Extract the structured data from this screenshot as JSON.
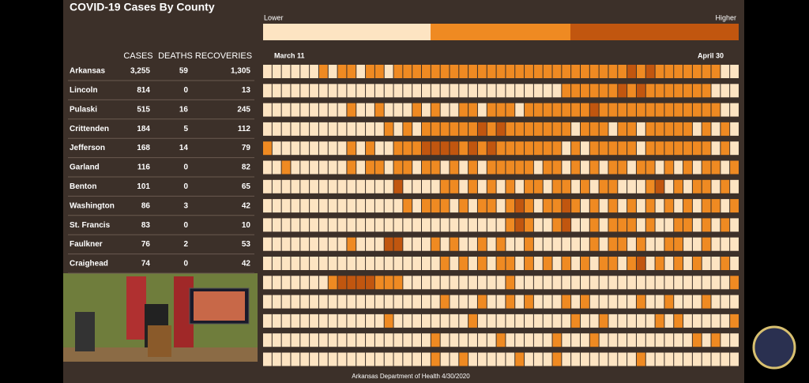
{
  "chart_data": {
    "type": "heatmap",
    "title": "COVID-19 Cases By County",
    "legend": {
      "low": "Lower",
      "high": "Higher"
    },
    "colors": [
      "#fde4c2",
      "#ef8a22",
      "#c1560f"
    ],
    "x_start": "March 11",
    "x_end": "April 30",
    "source": "Arkansas Department of Health 4/30/2020",
    "table": {
      "headers": [
        "CASES",
        "DEATHS",
        "RECOVERIES"
      ],
      "rows": [
        [
          "Arkansas",
          "3,255",
          "59",
          "1,305"
        ],
        [
          "Lincoln",
          "814",
          "0",
          "13"
        ],
        [
          "Pulaski",
          "515",
          "16",
          "245"
        ],
        [
          "Crittenden",
          "184",
          "5",
          "112"
        ],
        [
          "Jefferson",
          "168",
          "14",
          "79"
        ],
        [
          "Garland",
          "116",
          "0",
          "82"
        ],
        [
          "Benton",
          "101",
          "0",
          "65"
        ],
        [
          "Washington",
          "86",
          "3",
          "42"
        ],
        [
          "St. Francis",
          "83",
          "0",
          "10"
        ],
        [
          "Faulkner",
          "76",
          "2",
          "53"
        ],
        [
          "Craighead",
          "74",
          "0",
          "42"
        ]
      ]
    },
    "levels": [
      [
        1,
        1,
        1,
        1,
        1,
        1,
        2,
        1,
        2,
        2,
        1,
        2,
        2,
        1,
        2,
        2,
        2,
        2,
        2,
        2,
        2,
        2,
        2,
        2,
        2,
        2,
        2,
        2,
        2,
        2,
        2,
        2,
        2,
        2,
        2,
        2,
        2,
        2,
        2,
        3,
        2,
        3,
        2,
        2,
        2,
        2,
        2,
        2,
        2,
        1,
        1
      ],
      [
        1,
        1,
        1,
        1,
        1,
        1,
        1,
        1,
        1,
        1,
        1,
        1,
        1,
        1,
        1,
        1,
        1,
        1,
        1,
        1,
        1,
        1,
        1,
        1,
        1,
        1,
        1,
        1,
        1,
        1,
        1,
        1,
        2,
        2,
        2,
        2,
        2,
        2,
        3,
        2,
        3,
        2,
        2,
        2,
        2,
        2,
        2,
        2,
        1,
        1,
        1
      ],
      [
        1,
        1,
        1,
        1,
        1,
        1,
        1,
        1,
        1,
        2,
        1,
        1,
        2,
        1,
        1,
        1,
        2,
        1,
        2,
        1,
        1,
        2,
        2,
        1,
        2,
        2,
        2,
        1,
        2,
        2,
        2,
        2,
        2,
        2,
        2,
        3,
        2,
        2,
        2,
        2,
        2,
        2,
        2,
        2,
        2,
        2,
        2,
        2,
        2,
        1,
        1
      ],
      [
        1,
        1,
        1,
        1,
        1,
        1,
        1,
        1,
        1,
        1,
        1,
        1,
        1,
        2,
        1,
        2,
        1,
        2,
        2,
        2,
        2,
        2,
        2,
        3,
        2,
        3,
        2,
        2,
        2,
        2,
        2,
        2,
        2,
        1,
        2,
        2,
        2,
        1,
        2,
        2,
        1,
        2,
        2,
        2,
        2,
        2,
        1,
        2,
        1,
        2,
        1
      ],
      [
        2,
        1,
        1,
        1,
        1,
        1,
        1,
        1,
        1,
        2,
        1,
        2,
        1,
        1,
        2,
        2,
        2,
        3,
        3,
        3,
        3,
        2,
        3,
        2,
        3,
        2,
        2,
        2,
        2,
        2,
        2,
        2,
        1,
        2,
        1,
        2,
        2,
        2,
        2,
        2,
        1,
        2,
        2,
        2,
        2,
        2,
        2,
        2,
        1,
        2,
        1
      ],
      [
        1,
        1,
        2,
        1,
        1,
        1,
        1,
        1,
        1,
        2,
        1,
        2,
        2,
        1,
        2,
        2,
        1,
        2,
        2,
        1,
        2,
        1,
        2,
        1,
        2,
        2,
        2,
        2,
        2,
        1,
        2,
        2,
        1,
        2,
        1,
        2,
        1,
        2,
        2,
        1,
        2,
        2,
        1,
        2,
        1,
        2,
        1,
        2,
        2,
        1,
        2
      ],
      [
        1,
        1,
        1,
        1,
        1,
        1,
        1,
        1,
        1,
        1,
        1,
        1,
        1,
        1,
        3,
        1,
        1,
        1,
        1,
        2,
        2,
        1,
        2,
        1,
        2,
        1,
        2,
        1,
        2,
        2,
        1,
        2,
        2,
        1,
        2,
        1,
        2,
        2,
        1,
        1,
        1,
        2,
        3,
        1,
        2,
        1,
        2,
        2,
        1,
        2,
        1
      ],
      [
        1,
        1,
        1,
        1,
        1,
        1,
        1,
        1,
        1,
        1,
        1,
        1,
        1,
        1,
        1,
        2,
        1,
        2,
        2,
        2,
        1,
        2,
        1,
        2,
        2,
        1,
        2,
        3,
        2,
        1,
        2,
        2,
        3,
        2,
        1,
        2,
        1,
        2,
        1,
        2,
        1,
        2,
        1,
        2,
        1,
        2,
        1,
        2,
        2,
        1,
        2
      ],
      [
        1,
        1,
        1,
        1,
        1,
        1,
        1,
        1,
        1,
        1,
        1,
        1,
        1,
        1,
        1,
        1,
        1,
        1,
        1,
        1,
        1,
        1,
        1,
        1,
        1,
        1,
        2,
        3,
        2,
        1,
        1,
        2,
        3,
        1,
        1,
        2,
        1,
        2,
        2,
        2,
        1,
        2,
        1,
        1,
        2,
        2,
        1,
        2,
        1,
        2,
        1
      ],
      [
        1,
        1,
        1,
        1,
        1,
        1,
        1,
        1,
        1,
        2,
        1,
        1,
        1,
        3,
        3,
        1,
        1,
        1,
        2,
        1,
        2,
        1,
        1,
        2,
        1,
        2,
        1,
        1,
        2,
        1,
        1,
        1,
        1,
        1,
        1,
        2,
        1,
        2,
        2,
        1,
        2,
        1,
        1,
        2,
        2,
        1,
        1,
        2,
        1,
        1,
        1
      ],
      [
        1,
        1,
        1,
        1,
        1,
        1,
        1,
        1,
        1,
        1,
        1,
        1,
        1,
        1,
        1,
        1,
        1,
        1,
        1,
        2,
        1,
        2,
        1,
        2,
        1,
        2,
        2,
        1,
        2,
        1,
        2,
        1,
        2,
        1,
        2,
        1,
        2,
        2,
        1,
        2,
        3,
        1,
        2,
        1,
        2,
        1,
        2,
        1,
        1,
        2,
        1
      ],
      [
        1,
        1,
        1,
        1,
        1,
        1,
        1,
        2,
        3,
        3,
        3,
        3,
        2,
        2,
        2,
        1,
        1,
        1,
        1,
        1,
        1,
        1,
        1,
        1,
        1,
        1,
        2,
        1,
        1,
        1,
        1,
        1,
        1,
        1,
        1,
        1,
        1,
        1,
        1,
        1,
        1,
        1,
        1,
        1,
        1,
        1,
        1,
        1,
        1,
        1,
        2
      ],
      [
        1,
        1,
        1,
        1,
        1,
        1,
        1,
        1,
        1,
        1,
        1,
        1,
        1,
        1,
        1,
        1,
        1,
        1,
        1,
        2,
        1,
        1,
        1,
        2,
        1,
        1,
        2,
        1,
        2,
        1,
        1,
        1,
        2,
        1,
        2,
        1,
        1,
        1,
        1,
        1,
        2,
        1,
        1,
        2,
        1,
        1,
        1,
        2,
        1,
        1,
        1
      ],
      [
        1,
        1,
        1,
        1,
        1,
        1,
        1,
        1,
        1,
        1,
        1,
        1,
        1,
        2,
        1,
        1,
        1,
        1,
        1,
        1,
        1,
        1,
        2,
        1,
        1,
        1,
        1,
        1,
        1,
        1,
        1,
        1,
        1,
        2,
        1,
        1,
        2,
        1,
        1,
        1,
        1,
        1,
        2,
        1,
        2,
        1,
        1,
        1,
        1,
        1,
        2
      ],
      [
        1,
        1,
        1,
        1,
        1,
        1,
        1,
        1,
        1,
        1,
        1,
        1,
        1,
        1,
        1,
        1,
        1,
        1,
        2,
        1,
        1,
        1,
        1,
        1,
        1,
        2,
        1,
        1,
        1,
        1,
        1,
        2,
        1,
        1,
        1,
        2,
        1,
        1,
        1,
        1,
        1,
        1,
        1,
        1,
        1,
        1,
        2,
        1,
        2,
        1,
        1
      ],
      [
        1,
        1,
        1,
        1,
        1,
        1,
        1,
        1,
        1,
        1,
        1,
        1,
        1,
        1,
        1,
        1,
        1,
        1,
        2,
        1,
        1,
        2,
        1,
        1,
        1,
        1,
        1,
        2,
        1,
        1,
        1,
        2,
        1,
        1,
        1,
        1,
        1,
        1,
        1,
        1,
        2,
        1,
        1,
        1,
        1,
        1,
        1,
        1,
        1,
        1,
        1
      ]
    ]
  }
}
